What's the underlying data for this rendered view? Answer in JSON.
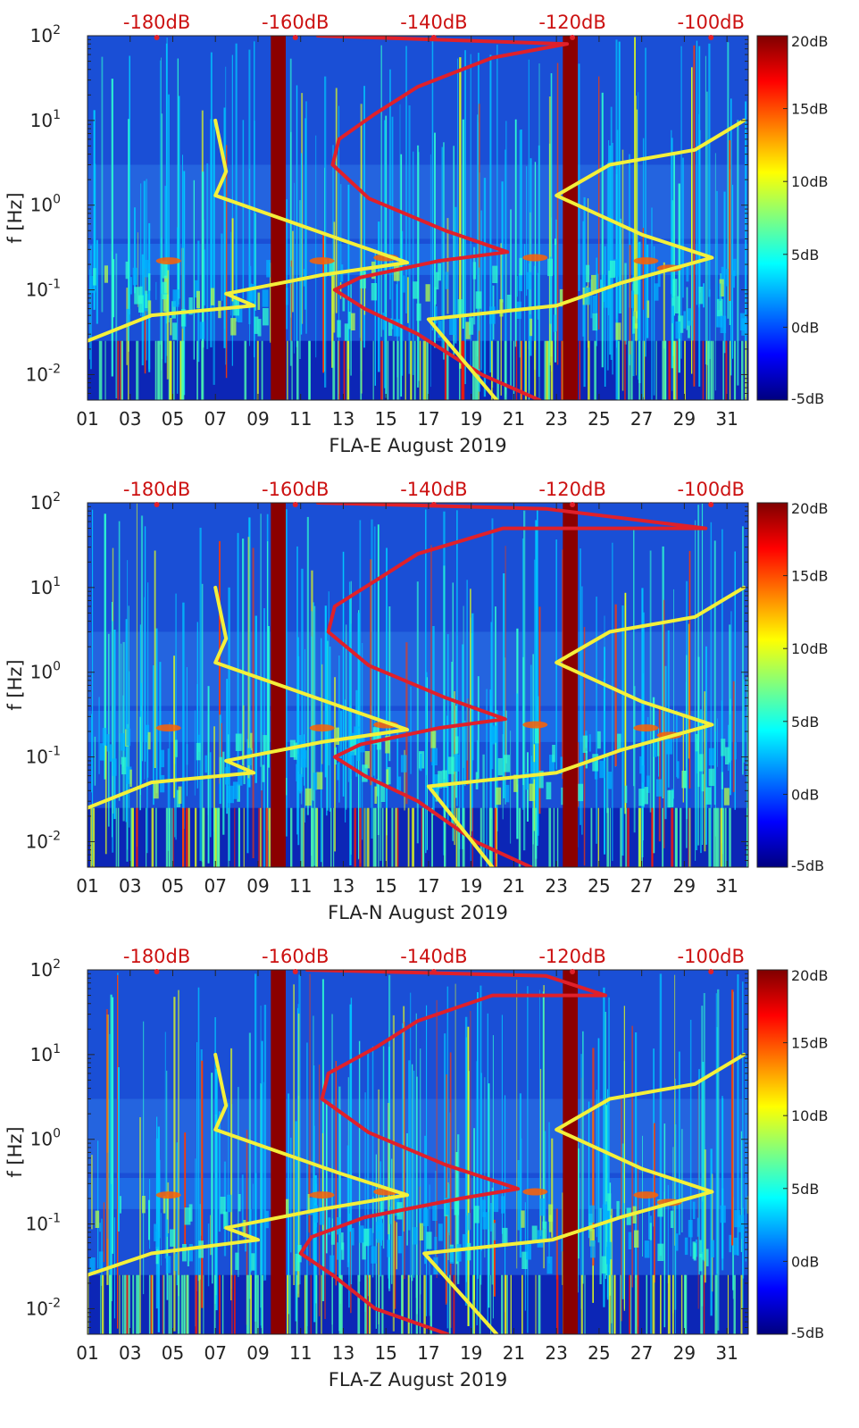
{
  "colormap": {
    "stops": [
      "#00007f",
      "#0000ff",
      "#007fff",
      "#00ffff",
      "#7fff7f",
      "#ffff00",
      "#ff7f00",
      "#ff0000",
      "#7f0000"
    ]
  },
  "colors": {
    "background_spectrogram": "#1a4fd6",
    "gap_band": "#8b0000",
    "red_curve": "#e0202a",
    "yellow_curve": "#f4f03a",
    "top_scale_text": "#cc1111"
  },
  "chart_data": [
    {
      "type": "heatmap",
      "title": "",
      "xlabel": "FLA-E August 2019",
      "ylabel": "f [Hz]",
      "x_tick_labels": [
        "01",
        "03",
        "05",
        "07",
        "09",
        "11",
        "13",
        "15",
        "17",
        "19",
        "21",
        "23",
        "25",
        "27",
        "29",
        "31"
      ],
      "x_tick_values": [
        1,
        3,
        5,
        7,
        9,
        11,
        13,
        15,
        17,
        19,
        21,
        23,
        25,
        27,
        29,
        31
      ],
      "xlim": [
        1,
        32
      ],
      "y_scale": "log",
      "ylim": [
        0.005,
        100
      ],
      "y_tick_labels": [
        {
          "base": "10",
          "exp": "2",
          "value": 100
        },
        {
          "base": "10",
          "exp": "1",
          "value": 10
        },
        {
          "base": "10",
          "exp": "0",
          "value": 1
        },
        {
          "base": "10",
          "exp": "-1",
          "value": 0.1
        },
        {
          "base": "10",
          "exp": "-2",
          "value": 0.01
        }
      ],
      "colorbar": {
        "range": [
          -5,
          20
        ],
        "tick_labels": [
          "20dB",
          "15dB",
          "10dB",
          "5dB",
          "0dB",
          "-5dB"
        ],
        "tick_values": [
          20,
          15,
          10,
          5,
          0,
          -5
        ]
      },
      "top_axis": {
        "tick_labels": [
          "-180dB",
          "-160dB",
          "-140dB",
          "-120dB",
          "-100dB"
        ],
        "tick_days": [
          4.25,
          10.75,
          17.25,
          23.75,
          30.25
        ]
      },
      "gap_bands_days": [
        [
          9.6,
          10.3
        ],
        [
          23.3,
          24.0
        ]
      ],
      "series": [
        {
          "name": "red model curve",
          "points": [
            [
              22.2,
              0.005
            ],
            [
              19.5,
              0.01
            ],
            [
              16.5,
              0.03
            ],
            [
              14.0,
              0.06
            ],
            [
              12.6,
              0.1
            ],
            [
              13.8,
              0.14
            ],
            [
              17.5,
              0.22
            ],
            [
              20.7,
              0.28
            ],
            [
              17.8,
              0.5
            ],
            [
              14.2,
              1.2
            ],
            [
              12.5,
              3
            ],
            [
              12.8,
              6
            ],
            [
              14.5,
              12
            ],
            [
              16.5,
              25
            ],
            [
              20.0,
              55
            ],
            [
              23.5,
              80
            ],
            [
              11.8,
              100
            ]
          ]
        },
        {
          "name": "yellow model curve left",
          "points": [
            [
              1.0,
              0.025
            ],
            [
              4.0,
              0.05
            ],
            [
              8.8,
              0.065
            ],
            [
              7.5,
              0.09
            ],
            [
              12.0,
              0.15
            ],
            [
              16.0,
              0.21
            ],
            [
              12.8,
              0.4
            ],
            [
              7.0,
              1.3
            ],
            [
              7.5,
              2.5
            ],
            [
              7.0,
              10
            ]
          ]
        },
        {
          "name": "yellow model curve right",
          "points": [
            [
              20.2,
              0.005
            ],
            [
              17.0,
              0.045
            ],
            [
              23.0,
              0.065
            ],
            [
              26.0,
              0.12
            ],
            [
              30.3,
              0.24
            ],
            [
              27.0,
              0.45
            ],
            [
              23.0,
              1.3
            ],
            [
              25.5,
              3
            ],
            [
              29.5,
              4.5
            ],
            [
              31.8,
              10
            ]
          ]
        }
      ]
    },
    {
      "type": "heatmap",
      "title": "",
      "xlabel": "FLA-N August 2019",
      "ylabel": "f [Hz]",
      "x_tick_labels": [
        "01",
        "03",
        "05",
        "07",
        "09",
        "11",
        "13",
        "15",
        "17",
        "19",
        "21",
        "23",
        "25",
        "27",
        "29",
        "31"
      ],
      "x_tick_values": [
        1,
        3,
        5,
        7,
        9,
        11,
        13,
        15,
        17,
        19,
        21,
        23,
        25,
        27,
        29,
        31
      ],
      "xlim": [
        1,
        32
      ],
      "y_scale": "log",
      "ylim": [
        0.005,
        100
      ],
      "y_tick_labels": [
        {
          "base": "10",
          "exp": "2",
          "value": 100
        },
        {
          "base": "10",
          "exp": "1",
          "value": 10
        },
        {
          "base": "10",
          "exp": "0",
          "value": 1
        },
        {
          "base": "10",
          "exp": "-1",
          "value": 0.1
        },
        {
          "base": "10",
          "exp": "-2",
          "value": 0.01
        }
      ],
      "colorbar": {
        "range": [
          -5,
          20
        ],
        "tick_labels": [
          "20dB",
          "15dB",
          "10dB",
          "5dB",
          "0dB",
          "-5dB"
        ],
        "tick_values": [
          20,
          15,
          10,
          5,
          0,
          -5
        ]
      },
      "top_axis": {
        "tick_labels": [
          "-180dB",
          "-160dB",
          "-140dB",
          "-120dB",
          "-100dB"
        ],
        "tick_days": [
          4.25,
          10.75,
          17.25,
          23.75,
          30.25
        ]
      },
      "gap_bands_days": [
        [
          9.6,
          10.3
        ],
        [
          23.3,
          24.0
        ]
      ],
      "series": [
        {
          "name": "red model curve",
          "points": [
            [
              21.8,
              0.005
            ],
            [
              19.2,
              0.01
            ],
            [
              16.5,
              0.03
            ],
            [
              14.0,
              0.06
            ],
            [
              12.6,
              0.1
            ],
            [
              13.8,
              0.14
            ],
            [
              17.5,
              0.22
            ],
            [
              20.6,
              0.28
            ],
            [
              17.8,
              0.5
            ],
            [
              14.2,
              1.2
            ],
            [
              12.3,
              3
            ],
            [
              12.6,
              6
            ],
            [
              14.5,
              12
            ],
            [
              16.5,
              25
            ],
            [
              20.5,
              50
            ],
            [
              30.0,
              50
            ],
            [
              22.5,
              85
            ],
            [
              11.8,
              100
            ]
          ]
        },
        {
          "name": "yellow model curve left",
          "points": [
            [
              1.0,
              0.025
            ],
            [
              4.0,
              0.05
            ],
            [
              8.8,
              0.065
            ],
            [
              7.5,
              0.09
            ],
            [
              12.0,
              0.15
            ],
            [
              16.0,
              0.21
            ],
            [
              12.8,
              0.4
            ],
            [
              7.0,
              1.3
            ],
            [
              7.5,
              2.5
            ],
            [
              7.0,
              10
            ]
          ]
        },
        {
          "name": "yellow model curve right",
          "points": [
            [
              20.0,
              0.005
            ],
            [
              17.0,
              0.045
            ],
            [
              23.0,
              0.065
            ],
            [
              26.0,
              0.12
            ],
            [
              30.3,
              0.24
            ],
            [
              27.0,
              0.45
            ],
            [
              23.0,
              1.3
            ],
            [
              25.5,
              3
            ],
            [
              29.5,
              4.5
            ],
            [
              31.8,
              10
            ]
          ]
        }
      ]
    },
    {
      "type": "heatmap",
      "title": "",
      "xlabel": "FLA-Z August 2019",
      "ylabel": "f [Hz]",
      "x_tick_labels": [
        "01",
        "03",
        "05",
        "07",
        "09",
        "11",
        "13",
        "15",
        "17",
        "19",
        "21",
        "23",
        "25",
        "27",
        "29",
        "31"
      ],
      "x_tick_values": [
        1,
        3,
        5,
        7,
        9,
        11,
        13,
        15,
        17,
        19,
        21,
        23,
        25,
        27,
        29,
        31
      ],
      "xlim": [
        1,
        32
      ],
      "y_scale": "log",
      "ylim": [
        0.005,
        100
      ],
      "y_tick_labels": [
        {
          "base": "10",
          "exp": "2",
          "value": 100
        },
        {
          "base": "10",
          "exp": "1",
          "value": 10
        },
        {
          "base": "10",
          "exp": "0",
          "value": 1
        },
        {
          "base": "10",
          "exp": "-1",
          "value": 0.1
        },
        {
          "base": "10",
          "exp": "-2",
          "value": 0.01
        }
      ],
      "colorbar": {
        "range": [
          -5,
          20
        ],
        "tick_labels": [
          "20dB",
          "15dB",
          "10dB",
          "5dB",
          "0dB",
          "-5dB"
        ],
        "tick_values": [
          20,
          15,
          10,
          5,
          0,
          -5
        ]
      },
      "top_axis": {
        "tick_labels": [
          "-180dB",
          "-160dB",
          "-140dB",
          "-120dB",
          "-100dB"
        ],
        "tick_days": [
          4.25,
          10.75,
          17.25,
          23.75,
          30.25
        ]
      },
      "gap_bands_days": [
        [
          9.6,
          10.3
        ],
        [
          23.3,
          24.0
        ]
      ],
      "series": [
        {
          "name": "red model curve",
          "points": [
            [
              17.9,
              0.005
            ],
            [
              14.5,
              0.01
            ],
            [
              12.5,
              0.025
            ],
            [
              11.0,
              0.045
            ],
            [
              11.5,
              0.07
            ],
            [
              14.0,
              0.12
            ],
            [
              18.5,
              0.2
            ],
            [
              21.2,
              0.26
            ],
            [
              17.8,
              0.5
            ],
            [
              14.2,
              1.2
            ],
            [
              12.0,
              3
            ],
            [
              12.3,
              6
            ],
            [
              14.5,
              12
            ],
            [
              16.5,
              25
            ],
            [
              20.0,
              50
            ],
            [
              25.3,
              50
            ],
            [
              22.5,
              85
            ],
            [
              11.3,
              100
            ]
          ]
        },
        {
          "name": "yellow model curve left",
          "points": [
            [
              1.0,
              0.025
            ],
            [
              4.0,
              0.045
            ],
            [
              9.0,
              0.065
            ],
            [
              7.5,
              0.09
            ],
            [
              12.0,
              0.15
            ],
            [
              16.0,
              0.22
            ],
            [
              12.8,
              0.4
            ],
            [
              7.0,
              1.3
            ],
            [
              7.5,
              2.5
            ],
            [
              7.0,
              10
            ]
          ]
        },
        {
          "name": "yellow model curve right",
          "points": [
            [
              20.2,
              0.005
            ],
            [
              16.8,
              0.045
            ],
            [
              22.8,
              0.065
            ],
            [
              26.0,
              0.12
            ],
            [
              30.3,
              0.24
            ],
            [
              27.0,
              0.45
            ],
            [
              23.0,
              1.3
            ],
            [
              25.5,
              3
            ],
            [
              29.5,
              4.5
            ],
            [
              31.8,
              10
            ]
          ]
        }
      ]
    }
  ]
}
